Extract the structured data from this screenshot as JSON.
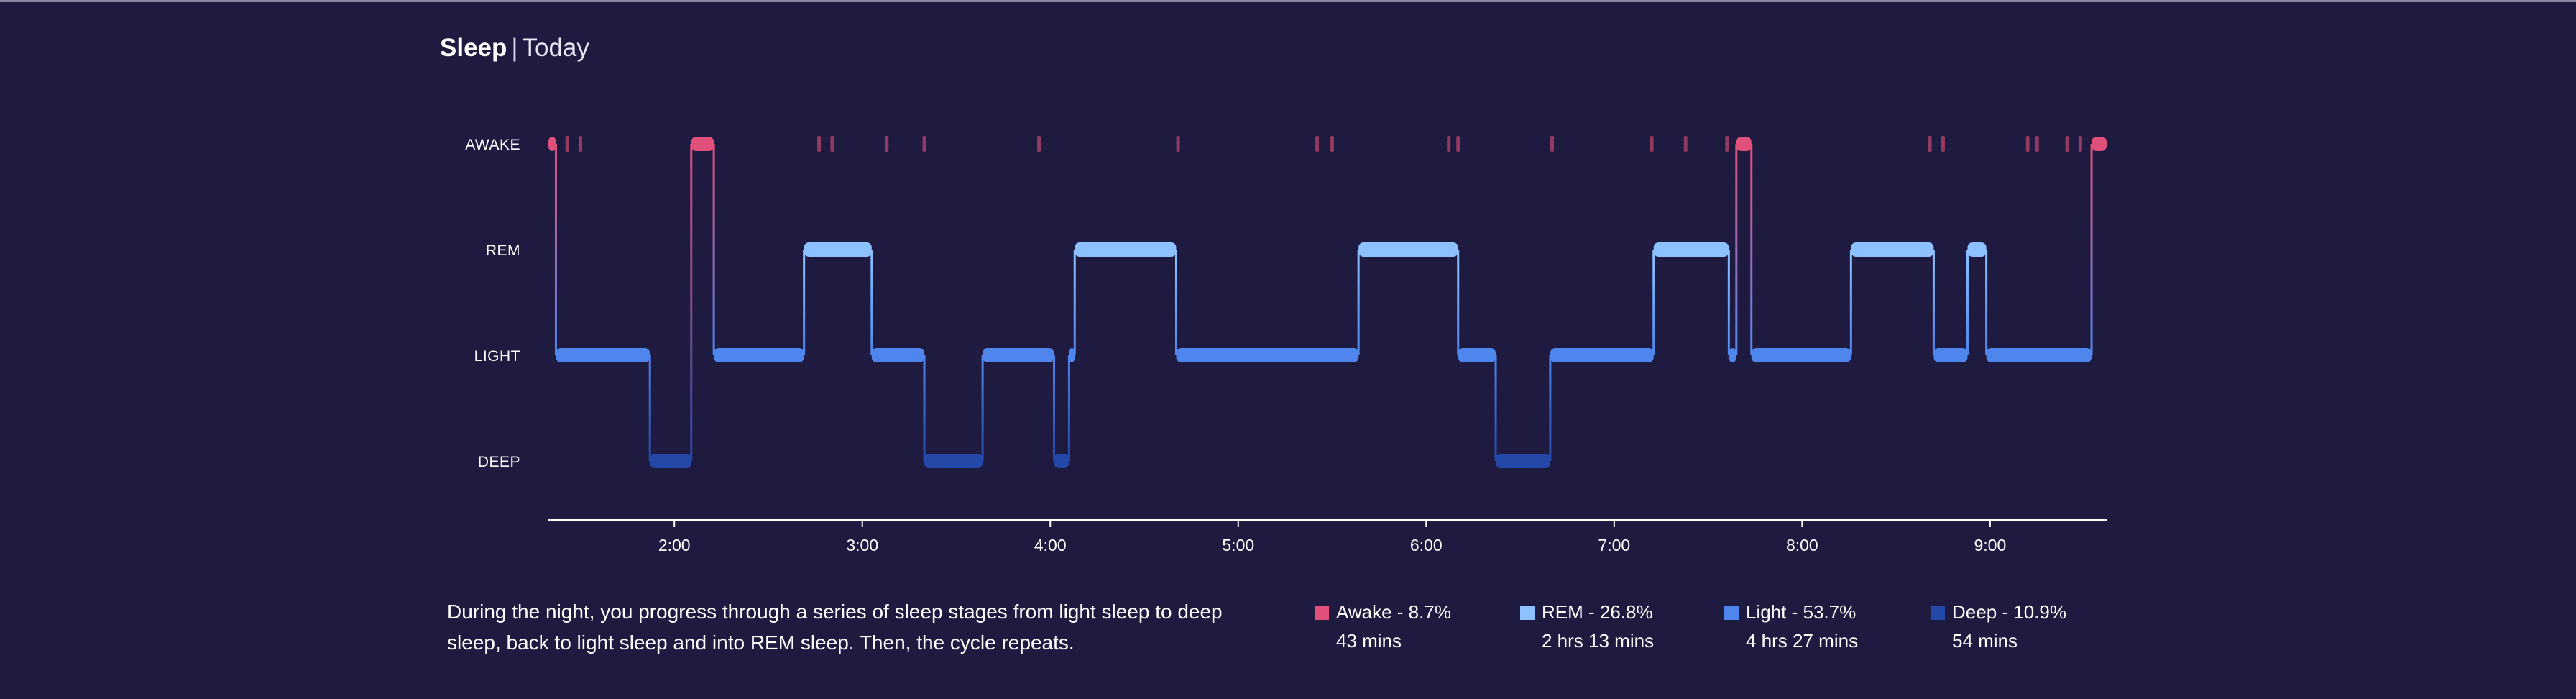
{
  "header": {
    "title": "Sleep",
    "separator": "|",
    "period": "Today"
  },
  "description": "During the night, you progress through a series of sleep stages from light sleep to deep sleep, back to light sleep and into REM sleep. Then, the cycle repeats.",
  "colors": {
    "background": "#1f1a3f",
    "awake": "#e0507a",
    "rem": "#8ec1ff",
    "light": "#4f86ee",
    "deep": "#2448a8"
  },
  "chart_data": {
    "type": "step-hypnogram",
    "stages": [
      "AWAKE",
      "REM",
      "LIGHT",
      "DEEP"
    ],
    "x_ticks": [
      "2:00",
      "3:00",
      "4:00",
      "5:00",
      "6:00",
      "7:00",
      "8:00",
      "9:00"
    ],
    "x_range_hours": [
      1.33,
      9.62
    ],
    "segments": [
      {
        "stage": "AWAKE",
        "start": 1.33,
        "end": 1.37
      },
      {
        "stage": "LIGHT",
        "start": 1.37,
        "end": 1.87
      },
      {
        "stage": "DEEP",
        "start": 1.87,
        "end": 2.09
      },
      {
        "stage": "AWAKE",
        "start": 2.09,
        "end": 2.21
      },
      {
        "stage": "LIGHT",
        "start": 2.21,
        "end": 2.69
      },
      {
        "stage": "REM",
        "start": 2.69,
        "end": 3.05
      },
      {
        "stage": "LIGHT",
        "start": 3.05,
        "end": 3.33
      },
      {
        "stage": "DEEP",
        "start": 3.33,
        "end": 3.64
      },
      {
        "stage": "LIGHT",
        "start": 3.64,
        "end": 4.02
      },
      {
        "stage": "DEEP",
        "start": 4.02,
        "end": 4.1
      },
      {
        "stage": "LIGHT",
        "start": 4.1,
        "end": 4.13
      },
      {
        "stage": "REM",
        "start": 4.13,
        "end": 4.67
      },
      {
        "stage": "LIGHT",
        "start": 4.67,
        "end": 5.64
      },
      {
        "stage": "REM",
        "start": 5.64,
        "end": 6.17
      },
      {
        "stage": "LIGHT",
        "start": 6.17,
        "end": 6.37
      },
      {
        "stage": "DEEP",
        "start": 6.37,
        "end": 6.66
      },
      {
        "stage": "LIGHT",
        "start": 6.66,
        "end": 7.21
      },
      {
        "stage": "REM",
        "start": 7.21,
        "end": 7.61
      },
      {
        "stage": "LIGHT",
        "start": 7.61,
        "end": 7.65
      },
      {
        "stage": "AWAKE",
        "start": 7.65,
        "end": 7.73
      },
      {
        "stage": "LIGHT",
        "start": 7.73,
        "end": 8.26
      },
      {
        "stage": "REM",
        "start": 8.26,
        "end": 8.7
      },
      {
        "stage": "LIGHT",
        "start": 8.7,
        "end": 8.88
      },
      {
        "stage": "REM",
        "start": 8.88,
        "end": 8.98
      },
      {
        "stage": "LIGHT",
        "start": 8.98,
        "end": 9.54
      },
      {
        "stage": "AWAKE",
        "start": 9.54,
        "end": 9.62
      }
    ],
    "awake_ticks": [
      1.43,
      1.5,
      2.77,
      2.84,
      3.13,
      3.33,
      3.94,
      4.68,
      5.42,
      5.5,
      6.12,
      6.17,
      6.67,
      7.2,
      7.38,
      7.6,
      8.68,
      8.75,
      9.2,
      9.25,
      9.41,
      9.48
    ],
    "summary": [
      {
        "stage": "Awake",
        "label": "Awake - 8.7%",
        "duration": "43 mins",
        "percent": 8.7
      },
      {
        "stage": "REM",
        "label": "REM - 26.8%",
        "duration": "2 hrs 13 mins",
        "percent": 26.8
      },
      {
        "stage": "Light",
        "label": "Light - 53.7%",
        "duration": "4 hrs 27 mins",
        "percent": 53.7
      },
      {
        "stage": "Deep",
        "label": "Deep - 10.9%",
        "duration": "54 mins",
        "percent": 10.9
      }
    ]
  }
}
